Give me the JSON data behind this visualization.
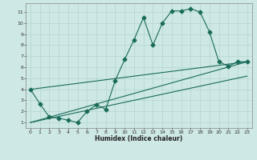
{
  "xlabel": "Humidex (Indice chaleur)",
  "bg_color": "#cde8e5",
  "grid_color": "#b8d8d5",
  "line_color": "#1a6b5a",
  "xlim": [
    -0.5,
    23.5
  ],
  "ylim": [
    0.5,
    11.8
  ],
  "xticks": [
    0,
    1,
    2,
    3,
    4,
    5,
    6,
    7,
    8,
    9,
    10,
    11,
    12,
    13,
    14,
    15,
    16,
    17,
    18,
    19,
    20,
    21,
    22,
    23
  ],
  "yticks": [
    1,
    2,
    3,
    4,
    5,
    6,
    7,
    8,
    9,
    10,
    11
  ],
  "series1_x": [
    0,
    1,
    2,
    3,
    4,
    5,
    6,
    7,
    8,
    9,
    10,
    11,
    12,
    13,
    14,
    15,
    16,
    17,
    18,
    19,
    20,
    21,
    22,
    23
  ],
  "series1_y": [
    4.0,
    2.7,
    1.5,
    1.4,
    1.2,
    1.0,
    2.0,
    2.6,
    2.2,
    4.8,
    6.7,
    8.5,
    10.5,
    8.0,
    10.0,
    11.1,
    11.1,
    11.3,
    11.0,
    9.2,
    6.5,
    6.1,
    6.5,
    6.5
  ],
  "series2_x": [
    0,
    23
  ],
  "series2_y": [
    4.0,
    6.5
  ],
  "series3_x": [
    0,
    23
  ],
  "series3_y": [
    1.0,
    6.5
  ],
  "series4_x": [
    0,
    23
  ],
  "series4_y": [
    1.0,
    5.2
  ]
}
